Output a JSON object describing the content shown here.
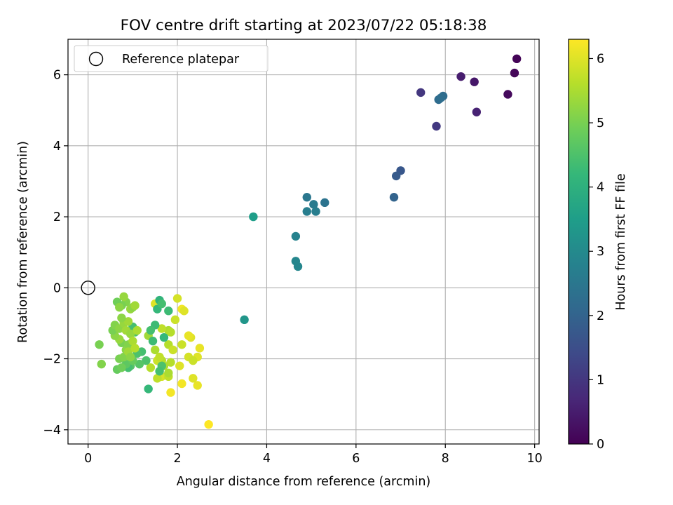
{
  "chart_data": {
    "type": "scatter",
    "title": "FOV centre drift starting at 2023/07/22 05:18:38",
    "xlabel": "Angular distance from reference (arcmin)",
    "ylabel": "Rotation from reference (arcmin)",
    "xlim": [
      -0.45,
      10.1
    ],
    "ylim": [
      -4.4,
      7.0
    ],
    "xticks": [
      0,
      2,
      4,
      6,
      8,
      10
    ],
    "yticks": [
      -4,
      -2,
      0,
      2,
      4,
      6
    ],
    "grid": true,
    "legend": {
      "placement": "top-left",
      "entries": [
        {
          "label": "Reference platepar",
          "marker": "open-circle"
        }
      ]
    },
    "reference_point": {
      "x": 0,
      "y": 0,
      "label": "Reference platepar"
    },
    "colorbar": {
      "label": "Hours from first FF file",
      "colormap": "viridis",
      "range": [
        0,
        6.3
      ],
      "ticks": [
        0,
        1,
        2,
        3,
        4,
        5,
        6
      ]
    },
    "colormap_stops": [
      "#440154",
      "#482878",
      "#3e4a89",
      "#31688e",
      "#26828e",
      "#1f9e89",
      "#35b779",
      "#6ece58",
      "#b5de2b",
      "#fde725"
    ],
    "series": [
      {
        "points": [
          {
            "x": 9.6,
            "y": 6.45,
            "c": 0.05
          },
          {
            "x": 9.55,
            "y": 6.05,
            "c": 0.1
          },
          {
            "x": 9.4,
            "y": 5.45,
            "c": 0.15
          },
          {
            "x": 8.65,
            "y": 5.8,
            "c": 0.4
          },
          {
            "x": 8.35,
            "y": 5.95,
            "c": 0.5
          },
          {
            "x": 8.7,
            "y": 4.95,
            "c": 0.6
          },
          {
            "x": 7.45,
            "y": 5.5,
            "c": 1.0
          },
          {
            "x": 7.8,
            "y": 4.55,
            "c": 1.05
          },
          {
            "x": 7.85,
            "y": 5.3,
            "c": 2.2
          },
          {
            "x": 7.95,
            "y": 5.4,
            "c": 2.2
          },
          {
            "x": 7.9,
            "y": 5.35,
            "c": 2.25
          },
          {
            "x": 7.0,
            "y": 3.3,
            "c": 1.7
          },
          {
            "x": 6.9,
            "y": 3.15,
            "c": 1.8
          },
          {
            "x": 6.85,
            "y": 2.55,
            "c": 2.0
          },
          {
            "x": 5.3,
            "y": 2.4,
            "c": 2.4
          },
          {
            "x": 4.9,
            "y": 2.55,
            "c": 2.5
          },
          {
            "x": 5.05,
            "y": 2.35,
            "c": 2.6
          },
          {
            "x": 4.9,
            "y": 2.15,
            "c": 2.7
          },
          {
            "x": 5.1,
            "y": 2.15,
            "c": 2.7
          },
          {
            "x": 4.65,
            "y": 1.45,
            "c": 2.8
          },
          {
            "x": 4.65,
            "y": 0.75,
            "c": 2.9
          },
          {
            "x": 4.7,
            "y": 0.6,
            "c": 2.9
          },
          {
            "x": 3.7,
            "y": 2.0,
            "c": 3.5
          },
          {
            "x": 3.5,
            "y": -0.9,
            "c": 3.3
          },
          {
            "x": 2.7,
            "y": -3.85,
            "c": 6.3
          },
          {
            "x": 1.85,
            "y": -2.95,
            "c": 6.2
          },
          {
            "x": 2.45,
            "y": -2.75,
            "c": 6.1
          },
          {
            "x": 2.35,
            "y": -2.55,
            "c": 6.0
          },
          {
            "x": 2.1,
            "y": -2.7,
            "c": 6.2
          },
          {
            "x": 2.5,
            "y": -1.7,
            "c": 6.1
          },
          {
            "x": 2.3,
            "y": -1.4,
            "c": 6.0
          },
          {
            "x": 2.25,
            "y": -1.35,
            "c": 6.1
          },
          {
            "x": 2.1,
            "y": -1.6,
            "c": 5.8
          },
          {
            "x": 2.45,
            "y": -1.95,
            "c": 6.0
          },
          {
            "x": 2.25,
            "y": -1.95,
            "c": 5.9
          },
          {
            "x": 2.35,
            "y": -2.05,
            "c": 5.8
          },
          {
            "x": 2.1,
            "y": -0.6,
            "c": 6.2
          },
          {
            "x": 2.15,
            "y": -0.65,
            "c": 6.0
          },
          {
            "x": 2.0,
            "y": -0.3,
            "c": 5.9
          },
          {
            "x": 1.95,
            "y": -0.9,
            "c": 5.8
          },
          {
            "x": 2.05,
            "y": -2.2,
            "c": 6.0
          },
          {
            "x": 1.5,
            "y": -0.45,
            "c": 6.0
          },
          {
            "x": 1.65,
            "y": -2.5,
            "c": 5.9
          },
          {
            "x": 1.8,
            "y": -2.5,
            "c": 5.7
          },
          {
            "x": 1.55,
            "y": -2.55,
            "c": 5.7
          },
          {
            "x": 1.8,
            "y": -2.4,
            "c": 5.5
          },
          {
            "x": 1.85,
            "y": -2.1,
            "c": 5.6
          },
          {
            "x": 1.7,
            "y": -2.2,
            "c": 5.5
          },
          {
            "x": 1.65,
            "y": -2.05,
            "c": 5.6
          },
          {
            "x": 1.55,
            "y": -2.05,
            "c": 5.8
          },
          {
            "x": 1.6,
            "y": -1.95,
            "c": 5.7
          },
          {
            "x": 1.8,
            "y": -1.6,
            "c": 5.6
          },
          {
            "x": 1.9,
            "y": -1.75,
            "c": 5.8
          },
          {
            "x": 1.8,
            "y": -1.2,
            "c": 5.5
          },
          {
            "x": 1.65,
            "y": -1.15,
            "c": 5.7
          },
          {
            "x": 1.85,
            "y": -1.25,
            "c": 5.6
          },
          {
            "x": 1.35,
            "y": -1.35,
            "c": 5.4
          },
          {
            "x": 1.5,
            "y": -1.75,
            "c": 5.5
          },
          {
            "x": 1.4,
            "y": -2.25,
            "c": 5.6
          },
          {
            "x": 1.35,
            "y": -2.85,
            "c": 4.2
          },
          {
            "x": 1.55,
            "y": -0.6,
            "c": 4.2
          },
          {
            "x": 1.6,
            "y": -0.35,
            "c": 4.1
          },
          {
            "x": 1.8,
            "y": -0.65,
            "c": 4.3
          },
          {
            "x": 1.65,
            "y": -0.45,
            "c": 4.4
          },
          {
            "x": 1.7,
            "y": -1.4,
            "c": 4.2
          },
          {
            "x": 1.5,
            "y": -1.05,
            "c": 4.3
          },
          {
            "x": 1.4,
            "y": -1.2,
            "c": 4.4
          },
          {
            "x": 1.45,
            "y": -1.5,
            "c": 4.3
          },
          {
            "x": 1.3,
            "y": -2.05,
            "c": 4.5
          },
          {
            "x": 1.15,
            "y": -2.15,
            "c": 4.6
          },
          {
            "x": 1.2,
            "y": -1.8,
            "c": 4.4
          },
          {
            "x": 1.1,
            "y": -1.85,
            "c": 4.5
          },
          {
            "x": 1.05,
            "y": -1.25,
            "c": 4.5
          },
          {
            "x": 1.0,
            "y": -1.1,
            "c": 4.4
          },
          {
            "x": 0.95,
            "y": -2.2,
            "c": 4.6
          },
          {
            "x": 0.9,
            "y": -2.25,
            "c": 4.4
          },
          {
            "x": 0.85,
            "y": -2.15,
            "c": 4.7
          },
          {
            "x": 1.0,
            "y": -2.05,
            "c": 4.8
          },
          {
            "x": 1.65,
            "y": -2.2,
            "c": 4.5
          },
          {
            "x": 1.6,
            "y": -2.35,
            "c": 4.4
          },
          {
            "x": 0.65,
            "y": -2.3,
            "c": 4.8
          },
          {
            "x": 0.75,
            "y": -2.25,
            "c": 4.9
          },
          {
            "x": 0.7,
            "y": -2.0,
            "c": 5.0
          },
          {
            "x": 0.8,
            "y": -1.95,
            "c": 5.1
          },
          {
            "x": 0.85,
            "y": -1.75,
            "c": 5.2
          },
          {
            "x": 0.75,
            "y": -1.55,
            "c": 5.0
          },
          {
            "x": 0.9,
            "y": -1.6,
            "c": 5.1
          },
          {
            "x": 0.7,
            "y": -1.45,
            "c": 5.3
          },
          {
            "x": 0.6,
            "y": -1.35,
            "c": 5.2
          },
          {
            "x": 0.55,
            "y": -1.2,
            "c": 5.0
          },
          {
            "x": 0.6,
            "y": -1.05,
            "c": 5.1
          },
          {
            "x": 0.7,
            "y": -1.15,
            "c": 5.2
          },
          {
            "x": 0.8,
            "y": -1.0,
            "c": 5.3
          },
          {
            "x": 0.9,
            "y": -0.95,
            "c": 5.4
          },
          {
            "x": 0.75,
            "y": -0.85,
            "c": 5.2
          },
          {
            "x": 0.85,
            "y": -1.2,
            "c": 5.4
          },
          {
            "x": 0.95,
            "y": -1.3,
            "c": 5.3
          },
          {
            "x": 1.0,
            "y": -1.5,
            "c": 5.5
          },
          {
            "x": 0.9,
            "y": -1.8,
            "c": 5.4
          },
          {
            "x": 0.95,
            "y": -0.6,
            "c": 5.3
          },
          {
            "x": 1.0,
            "y": -0.55,
            "c": 5.2
          },
          {
            "x": 1.05,
            "y": -0.5,
            "c": 5.4
          },
          {
            "x": 0.85,
            "y": -0.4,
            "c": 5.1
          },
          {
            "x": 0.8,
            "y": -0.25,
            "c": 5.3
          },
          {
            "x": 0.75,
            "y": -0.5,
            "c": 5.0
          },
          {
            "x": 0.65,
            "y": -0.4,
            "c": 4.9
          },
          {
            "x": 0.7,
            "y": -0.55,
            "c": 5.2
          },
          {
            "x": 0.25,
            "y": -1.6,
            "c": 5.0
          },
          {
            "x": 0.3,
            "y": -2.15,
            "c": 5.1
          },
          {
            "x": 1.1,
            "y": -1.2,
            "c": 5.5
          },
          {
            "x": 1.05,
            "y": -1.7,
            "c": 5.6
          },
          {
            "x": 0.95,
            "y": -1.95,
            "c": 5.2
          }
        ]
      }
    ]
  }
}
